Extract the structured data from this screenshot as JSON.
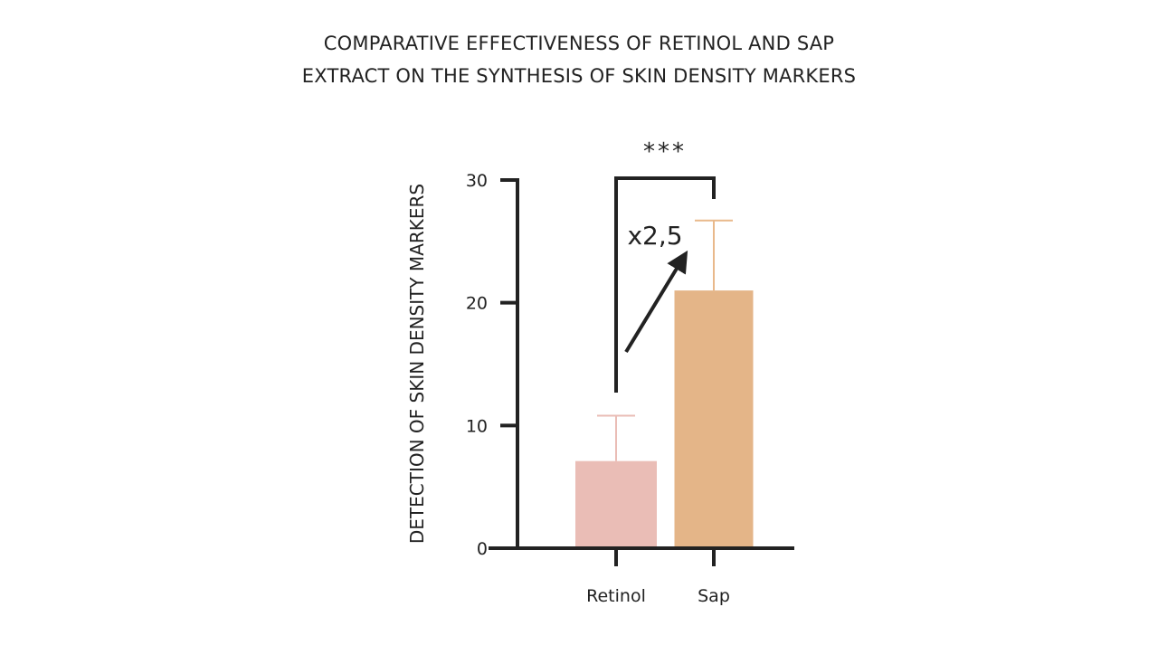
{
  "title_lines": [
    "COMPARATIVE EFFECTIVENESS OF RETINOL AND SAP",
    "EXTRACT ON THE SYNTHESIS OF SKIN DENSITY MARKERS"
  ],
  "chart_data": {
    "type": "bar",
    "title": "COMPARATIVE EFFECTIVENESS OF RETINOL AND SAP EXTRACT ON THE SYNTHESIS OF SKIN DENSITY MARKERS",
    "categories": [
      "Retinol",
      "Sap"
    ],
    "values": [
      7.1,
      21.0
    ],
    "error_upper": [
      10.8,
      26.7
    ],
    "ylabel": "DETECTION OF SKIN DENSITY MARKERS",
    "xlabel": "",
    "ylim": [
      0,
      30
    ],
    "yticks": [
      0,
      10,
      20,
      30
    ],
    "ytick_labels": [
      "0",
      "10",
      "20",
      "30"
    ],
    "grid": false,
    "colors": [
      "#eabdb6",
      "#e4b588"
    ],
    "error_colors": [
      "#eabdb6",
      "#e9b98b"
    ],
    "axis_color": "#222222",
    "annotations": {
      "significance": "***",
      "fold_change": "x2,5"
    }
  }
}
